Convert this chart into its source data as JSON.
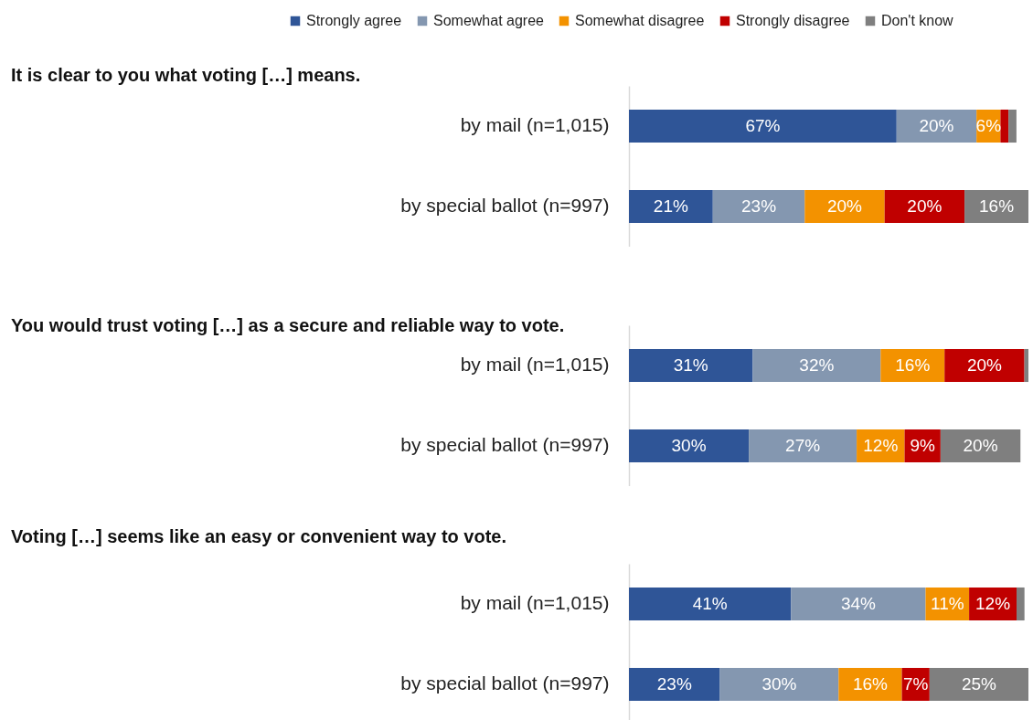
{
  "chart_data": [
    {
      "type": "bar",
      "orientation": "horizontal",
      "stacked": true,
      "title": "It is clear to you what voting […] means.",
      "legend": "top left",
      "categories": [
        "by mail (n=1,015)",
        "by special ballot (n=997)"
      ],
      "series": [
        {
          "name": "Strongly agree",
          "color": "#2f5597",
          "values": [
            67,
            21
          ],
          "value_labels": [
            "67%",
            "21%"
          ]
        },
        {
          "name": "Somewhat agree",
          "color": "#8497b0",
          "values": [
            20,
            23
          ],
          "value_labels": [
            "20%",
            "23%"
          ]
        },
        {
          "name": "Somewhat disagree",
          "color": "#f39200",
          "values": [
            6,
            20
          ],
          "value_labels": [
            "6%",
            "20%"
          ]
        },
        {
          "name": "Strongly disagree",
          "color": "#c00000",
          "values": [
            2,
            20
          ],
          "value_labels": [
            null,
            "20%"
          ]
        },
        {
          "name": "Don't know",
          "color": "#7f7f7f",
          "values": [
            2,
            16
          ],
          "value_labels": [
            null,
            "16%"
          ]
        }
      ]
    },
    {
      "type": "bar",
      "orientation": "horizontal",
      "stacked": true,
      "title": "You would trust voting […] as a secure and reliable way to vote.",
      "categories": [
        "by mail (n=1,015)",
        "by special ballot (n=997)"
      ],
      "series": [
        {
          "color": "#2f5597",
          "values": [
            31,
            30
          ],
          "value_labels": [
            "31%",
            "30%"
          ]
        },
        {
          "color": "#8497b0",
          "values": [
            32,
            27
          ],
          "value_labels": [
            "32%",
            "27%"
          ]
        },
        {
          "color": "#f39200",
          "values": [
            16,
            12
          ],
          "value_labels": [
            "16%",
            "12%"
          ]
        },
        {
          "color": "#c00000",
          "values": [
            20,
            9
          ],
          "value_labels": [
            "20%",
            "9%"
          ]
        },
        {
          "color": "#7f7f7f",
          "values": [
            1,
            20
          ],
          "value_labels": [
            null,
            "20%"
          ]
        }
      ]
    },
    {
      "type": "bar",
      "orientation": "horizontal",
      "stacked": true,
      "title": "Voting […] seems like an easy or convenient way to vote.",
      "categories": [
        "by mail (n=1,015)",
        "by special ballot (n=997)"
      ],
      "series": [
        {
          "color": "#2f5597",
          "values": [
            41,
            23
          ],
          "value_labels": [
            "41%",
            "23%"
          ]
        },
        {
          "color": "#8497b0",
          "values": [
            34,
            30
          ],
          "value_labels": [
            "34%",
            "30%"
          ]
        },
        {
          "color": "#f39200",
          "values": [
            11,
            16
          ],
          "value_labels": [
            "11%",
            "16%"
          ]
        },
        {
          "color": "#c00000",
          "values": [
            12,
            7
          ],
          "value_labels": [
            "12%",
            "7%"
          ]
        },
        {
          "color": "#7f7f7f",
          "values": [
            2,
            25
          ],
          "value_labels": [
            null,
            "25%"
          ]
        }
      ]
    }
  ]
}
